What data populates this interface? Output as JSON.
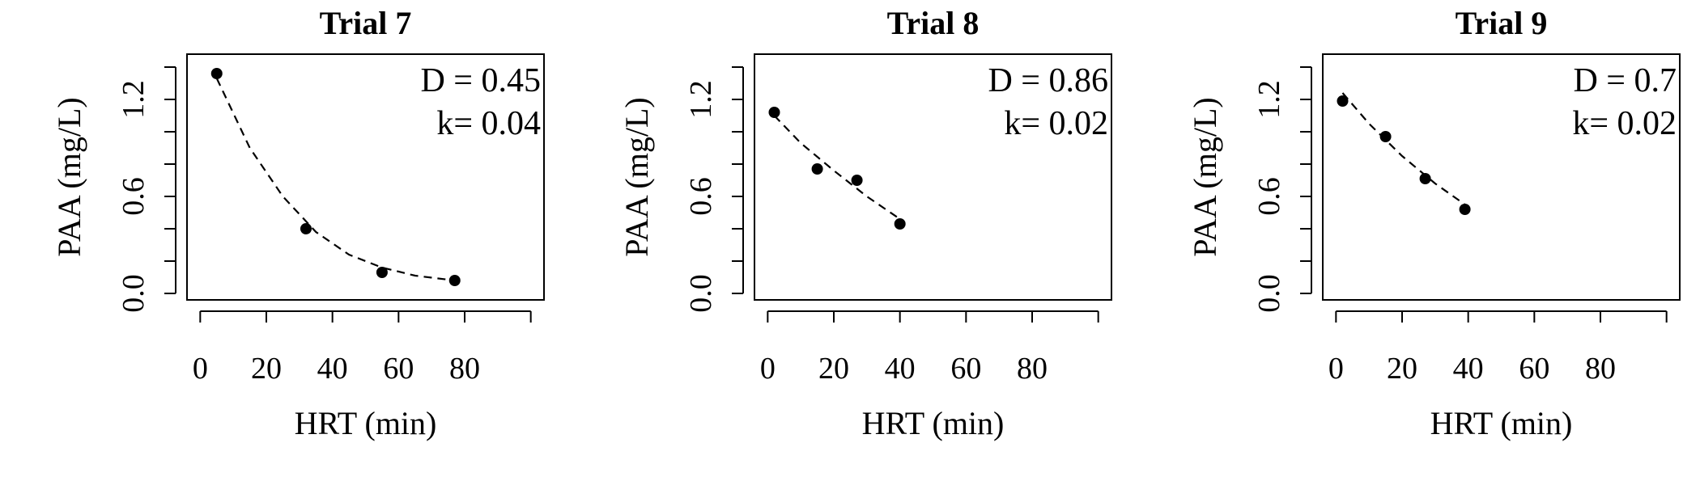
{
  "chart_data": [
    {
      "type": "scatter",
      "title": "Trial 7",
      "xlabel": "HRT (min)",
      "ylabel": "PAA (mg/L)",
      "xlim": [
        -4,
        104
      ],
      "ylim": [
        -0.04,
        1.48
      ],
      "xticks": [
        0,
        20,
        40,
        60,
        80,
        100
      ],
      "xtick_labels": [
        "0",
        "20",
        "40",
        "60",
        "80",
        ""
      ],
      "yticks": [
        0.0,
        0.2,
        0.4,
        0.6,
        0.8,
        1.0,
        1.2,
        1.4
      ],
      "ytick_labels": [
        "0.0",
        "",
        "",
        "0.6",
        "",
        "",
        "1.2",
        ""
      ],
      "points": [
        {
          "x": 5,
          "y": 1.36
        },
        {
          "x": 32,
          "y": 0.4
        },
        {
          "x": 55,
          "y": 0.13
        },
        {
          "x": 77,
          "y": 0.08
        }
      ],
      "fit_curve": {
        "style": "dashed",
        "x_range": [
          5,
          77
        ],
        "points": [
          [
            5,
            1.33
          ],
          [
            15,
            0.9
          ],
          [
            25,
            0.6
          ],
          [
            35,
            0.38
          ],
          [
            45,
            0.24
          ],
          [
            55,
            0.16
          ],
          [
            65,
            0.11
          ],
          [
            77,
            0.08
          ]
        ]
      },
      "annotation": [
        "D = 0.45",
        "k= 0.04"
      ],
      "annotation_position": "top-right",
      "grid": false
    },
    {
      "type": "scatter",
      "title": "Trial 8",
      "xlabel": "HRT (min)",
      "ylabel": "PAA (mg/L)",
      "xlim": [
        -4,
        104
      ],
      "ylim": [
        -0.04,
        1.48
      ],
      "xticks": [
        0,
        20,
        40,
        60,
        80,
        100
      ],
      "xtick_labels": [
        "0",
        "20",
        "40",
        "60",
        "80",
        ""
      ],
      "yticks": [
        0.0,
        0.2,
        0.4,
        0.6,
        0.8,
        1.0,
        1.2,
        1.4
      ],
      "ytick_labels": [
        "0.0",
        "",
        "",
        "0.6",
        "",
        "",
        "1.2",
        ""
      ],
      "points": [
        {
          "x": 2,
          "y": 1.12
        },
        {
          "x": 15,
          "y": 0.77
        },
        {
          "x": 27,
          "y": 0.7
        },
        {
          "x": 40,
          "y": 0.43
        }
      ],
      "fit_curve": {
        "style": "dashed",
        "x_range": [
          2,
          40
        ],
        "points": [
          [
            2,
            1.1
          ],
          [
            10,
            0.93
          ],
          [
            20,
            0.76
          ],
          [
            30,
            0.6
          ],
          [
            40,
            0.46
          ]
        ]
      },
      "annotation": [
        "D = 0.86",
        "k= 0.02"
      ],
      "annotation_position": "top-right",
      "grid": false
    },
    {
      "type": "scatter",
      "title": "Trial 9",
      "xlabel": "HRT (min)",
      "ylabel": "PAA (mg/L)",
      "xlim": [
        -4,
        104
      ],
      "ylim": [
        -0.04,
        1.48
      ],
      "xticks": [
        0,
        20,
        40,
        60,
        80,
        100
      ],
      "xtick_labels": [
        "0",
        "20",
        "40",
        "60",
        "80",
        ""
      ],
      "yticks": [
        0.0,
        0.2,
        0.4,
        0.6,
        0.8,
        1.0,
        1.2,
        1.4
      ],
      "ytick_labels": [
        "0.0",
        "",
        "",
        "0.6",
        "",
        "",
        "1.2",
        ""
      ],
      "points": [
        {
          "x": 2,
          "y": 1.19
        },
        {
          "x": 15,
          "y": 0.97
        },
        {
          "x": 27,
          "y": 0.71
        },
        {
          "x": 39,
          "y": 0.52
        }
      ],
      "fit_curve": {
        "style": "dashed",
        "x_range": [
          2,
          39
        ],
        "points": [
          [
            2,
            1.24
          ],
          [
            10,
            1.05
          ],
          [
            20,
            0.85
          ],
          [
            30,
            0.68
          ],
          [
            39,
            0.55
          ]
        ]
      },
      "annotation": [
        "D = 0.7",
        "k= 0.02"
      ],
      "annotation_position": "top-right",
      "grid": false
    }
  ]
}
